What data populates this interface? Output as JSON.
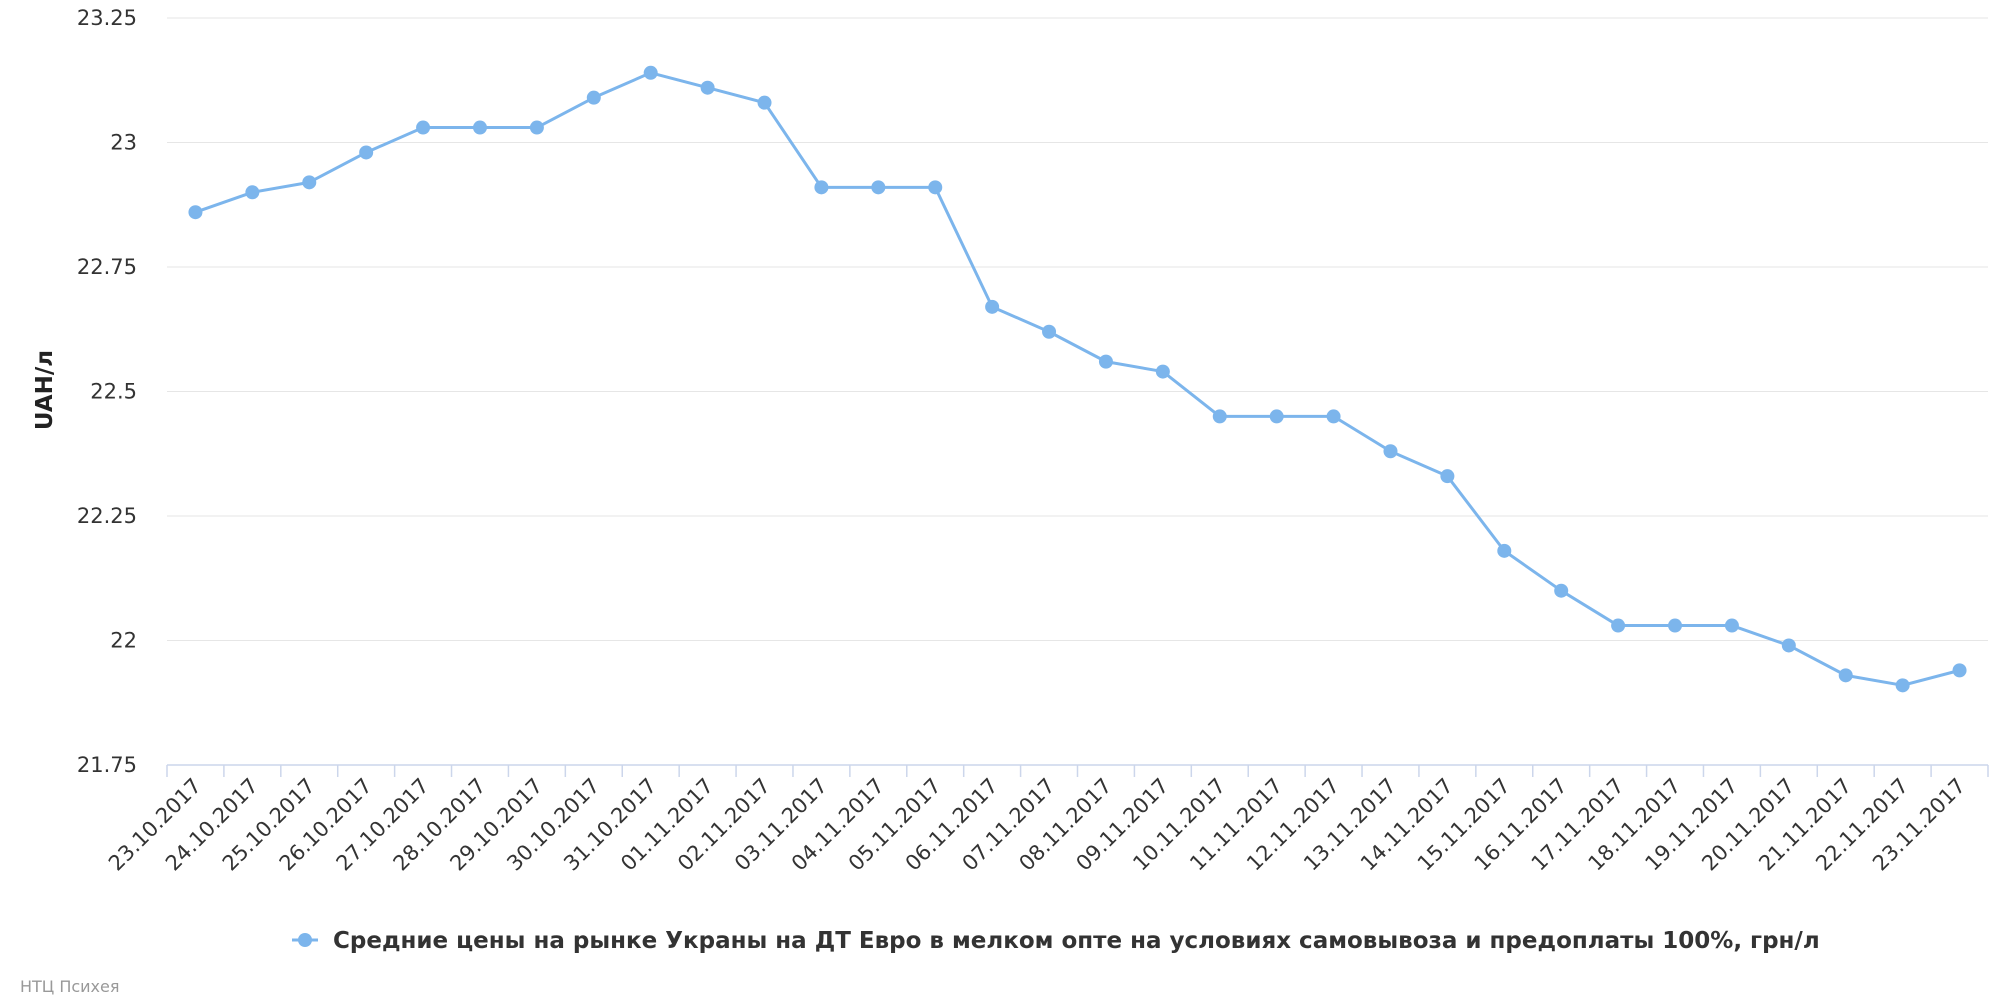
{
  "chart_data": {
    "type": "line",
    "ylabel": "UAH/л",
    "ylim": [
      21.75,
      23.25
    ],
    "yticks": [
      "21.75",
      "22",
      "22.25",
      "22.5",
      "22.75",
      "23",
      "23.25"
    ],
    "grid": true,
    "legend_position": "bottom-center",
    "categories": [
      "23.10.2017",
      "24.10.2017",
      "25.10.2017",
      "26.10.2017",
      "27.10.2017",
      "28.10.2017",
      "29.10.2017",
      "30.10.2017",
      "31.10.2017",
      "01.11.2017",
      "02.11.2017",
      "03.11.2017",
      "04.11.2017",
      "05.11.2017",
      "06.11.2017",
      "07.11.2017",
      "08.11.2017",
      "09.11.2017",
      "10.11.2017",
      "11.11.2017",
      "12.11.2017",
      "13.11.2017",
      "14.11.2017",
      "15.11.2017",
      "16.11.2017",
      "17.11.2017",
      "18.11.2017",
      "19.11.2017",
      "20.11.2017",
      "21.11.2017",
      "22.11.2017",
      "23.11.2017"
    ],
    "series": [
      {
        "name": "Средние цены на рынке Украны на ДТ Евро в мелком опте на условиях самовывоза и предоплаты 100%, грн/л",
        "color": "#7cb5ec",
        "values": [
          22.86,
          22.9,
          22.92,
          22.98,
          23.03,
          23.03,
          23.03,
          23.09,
          23.14,
          23.11,
          23.08,
          22.91,
          22.91,
          22.91,
          22.67,
          22.62,
          22.56,
          22.54,
          22.45,
          22.45,
          22.45,
          22.38,
          22.33,
          22.18,
          22.1,
          22.03,
          22.03,
          22.03,
          21.99,
          21.93,
          21.91,
          21.94
        ]
      }
    ]
  },
  "credit": "НТЦ Психея",
  "colors": {
    "grid": "#e6e6e6",
    "axis": "#ccd6eb",
    "series": "#7cb5ec"
  }
}
